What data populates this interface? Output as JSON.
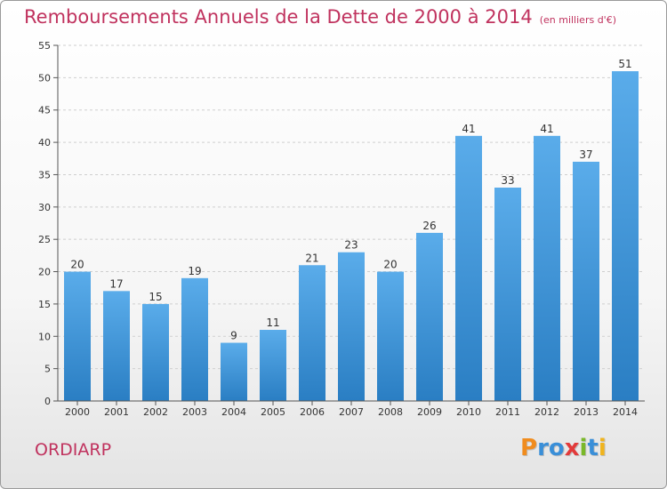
{
  "header": {
    "title": "Remboursements Annuels de la Dette de 2000 à 2014",
    "subtitle": "(en milliers d'€)"
  },
  "footer": {
    "commune": "ORDIARP",
    "logo_text": "Proxiti",
    "logo_colors": [
      "#f08c1e",
      "#3a8fd8",
      "#3a8fd8",
      "#e23a3a",
      "#7ab829",
      "#3a8fd8",
      "#f0b41e"
    ]
  },
  "colors": {
    "bar_top": "#5aacea",
    "bar_bottom": "#2a7ec3",
    "title": "#c0325e",
    "grid": "#cfcfcf"
  },
  "chart_data": {
    "type": "bar",
    "title": "Remboursements Annuels de la Dette de 2000 à 2014",
    "subtitle": "(en milliers d'€)",
    "categories": [
      "2000",
      "2001",
      "2002",
      "2003",
      "2004",
      "2005",
      "2006",
      "2007",
      "2008",
      "2009",
      "2010",
      "2011",
      "2012",
      "2013",
      "2014"
    ],
    "values": [
      20,
      17,
      15,
      19,
      9,
      11,
      21,
      23,
      20,
      26,
      41,
      33,
      41,
      37,
      51
    ],
    "ylim": [
      0,
      55
    ],
    "yticks": [
      0,
      5,
      10,
      15,
      20,
      25,
      30,
      35,
      40,
      45,
      50,
      55
    ],
    "grid": "horizontal dashed",
    "data_labels": true
  }
}
